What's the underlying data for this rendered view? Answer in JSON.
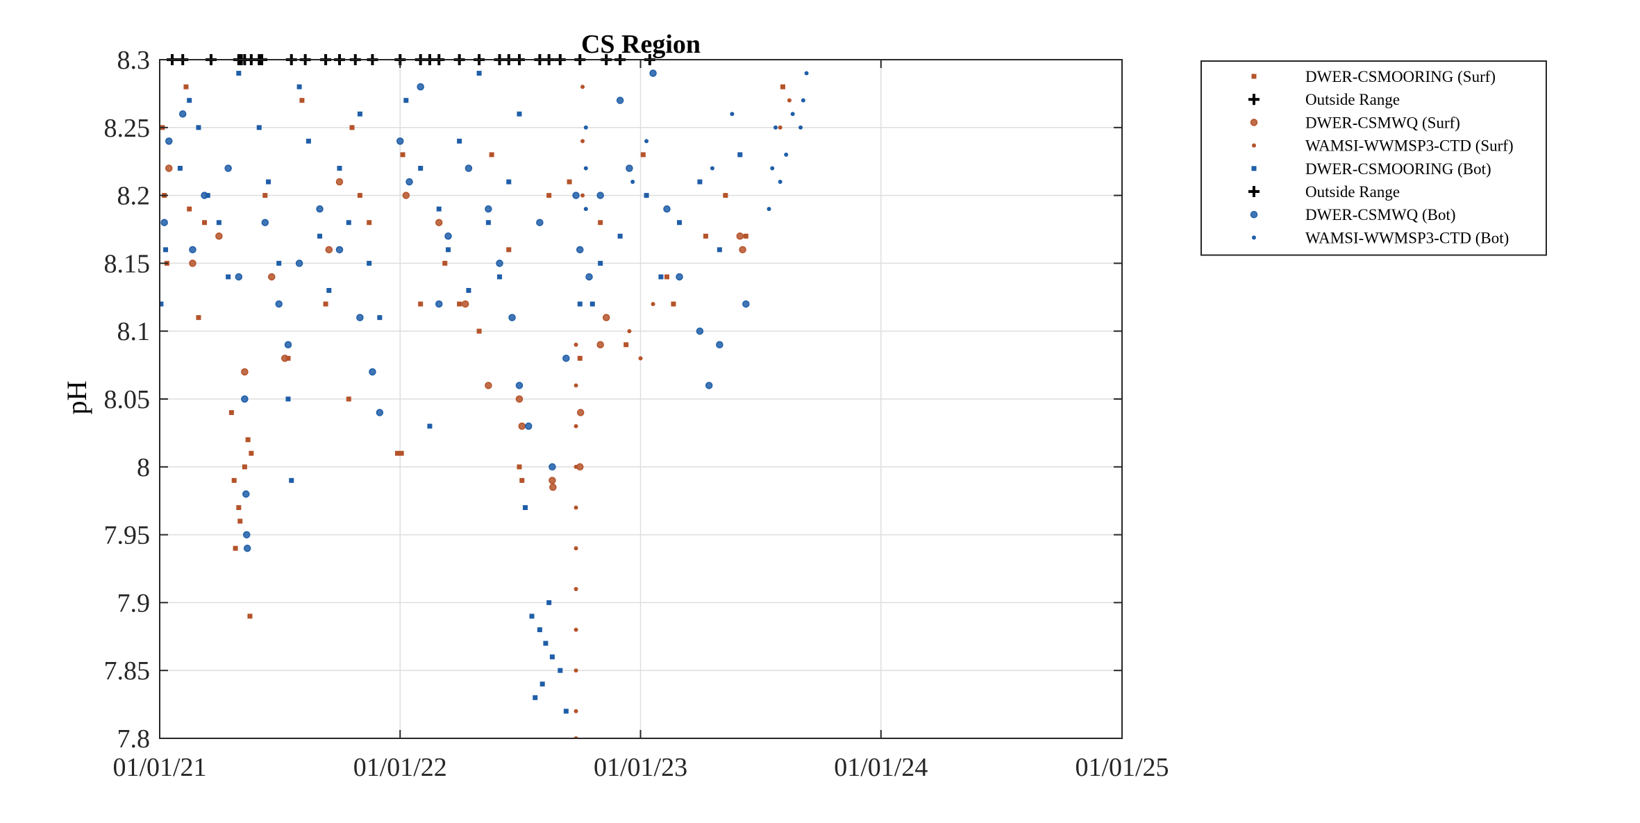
{
  "chart_data": {
    "type": "scatter",
    "title": "CS Region",
    "xlabel": "",
    "ylabel": "pH",
    "x_axis": {
      "type": "date",
      "range": [
        "2021-01-01",
        "2025-01-01"
      ],
      "ticks": [
        {
          "value": "2021-01-01",
          "label": "01/01/21"
        },
        {
          "value": "2022-01-01",
          "label": "01/01/22"
        },
        {
          "value": "2023-01-01",
          "label": "01/01/23"
        },
        {
          "value": "2024-01-01",
          "label": "01/01/24"
        },
        {
          "value": "2025-01-01",
          "label": "01/01/25"
        }
      ]
    },
    "y_axis": {
      "range": [
        7.8,
        8.3
      ],
      "ticks": [
        {
          "value": 7.8,
          "label": "7.8"
        },
        {
          "value": 7.85,
          "label": "7.85"
        },
        {
          "value": 7.9,
          "label": "7.9"
        },
        {
          "value": 7.95,
          "label": "7.95"
        },
        {
          "value": 8.0,
          "label": "8"
        },
        {
          "value": 8.05,
          "label": "8.05"
        },
        {
          "value": 8.1,
          "label": "8.1"
        },
        {
          "value": 8.15,
          "label": "8.15"
        },
        {
          "value": 8.2,
          "label": "8.2"
        },
        {
          "value": 8.25,
          "label": "8.25"
        },
        {
          "value": 8.3,
          "label": "8.3"
        }
      ]
    },
    "grid": true,
    "legend_position": "outside-top-right",
    "colors": {
      "surface": "#b5532a",
      "bottom": "#1f5ea8",
      "outside_range": "#000000"
    },
    "series": [
      {
        "name": "DWER-CSMOORING (Surf)",
        "marker": "square",
        "color": "#b5532a",
        "points": [
          [
            "2021-01-05",
            8.25
          ],
          [
            "2021-01-08",
            8.2
          ],
          [
            "2021-01-12",
            8.15
          ],
          [
            "2021-02-10",
            8.28
          ],
          [
            "2021-02-15",
            8.19
          ],
          [
            "2021-03-01",
            8.11
          ],
          [
            "2021-03-10",
            8.18
          ],
          [
            "2021-04-20",
            8.04
          ],
          [
            "2021-04-24",
            7.99
          ],
          [
            "2021-04-26",
            7.94
          ],
          [
            "2021-05-01",
            7.97
          ],
          [
            "2021-05-03",
            7.96
          ],
          [
            "2021-05-10",
            8.0
          ],
          [
            "2021-05-15",
            8.02
          ],
          [
            "2021-05-18",
            7.89
          ],
          [
            "2021-05-20",
            8.01
          ],
          [
            "2021-06-10",
            8.2
          ],
          [
            "2021-07-15",
            8.08
          ],
          [
            "2021-08-05",
            8.27
          ],
          [
            "2021-09-10",
            8.12
          ],
          [
            "2021-10-15",
            8.05
          ],
          [
            "2021-10-20",
            8.25
          ],
          [
            "2021-11-01",
            8.2
          ],
          [
            "2021-11-15",
            8.18
          ],
          [
            "2021-12-28",
            8.01
          ],
          [
            "2022-01-03",
            8.01
          ],
          [
            "2022-01-05",
            8.23
          ],
          [
            "2022-02-01",
            8.12
          ],
          [
            "2022-03-10",
            8.15
          ],
          [
            "2022-04-01",
            8.12
          ],
          [
            "2022-05-01",
            8.1
          ],
          [
            "2022-05-20",
            8.23
          ],
          [
            "2022-06-15",
            8.16
          ],
          [
            "2022-07-01",
            8.0
          ],
          [
            "2022-07-05",
            7.99
          ],
          [
            "2022-08-15",
            8.2
          ],
          [
            "2022-09-15",
            8.21
          ],
          [
            "2022-10-01",
            8.08
          ],
          [
            "2022-11-01",
            8.18
          ],
          [
            "2022-12-10",
            8.09
          ],
          [
            "2023-01-05",
            8.23
          ],
          [
            "2023-02-10",
            8.14
          ],
          [
            "2023-02-20",
            8.12
          ],
          [
            "2023-04-10",
            8.17
          ],
          [
            "2023-05-10",
            8.2
          ],
          [
            "2023-06-10",
            8.17
          ],
          [
            "2023-08-05",
            8.28
          ]
        ]
      },
      {
        "name": "Outside Range",
        "marker": "plus",
        "color": "#000000",
        "points": [
          [
            "2021-01-20",
            8.3
          ],
          [
            "2021-02-05",
            8.3
          ],
          [
            "2021-03-20",
            8.3
          ],
          [
            "2021-05-01",
            8.3
          ],
          [
            "2021-05-10",
            8.3
          ],
          [
            "2021-05-20",
            8.3
          ],
          [
            "2021-06-01",
            8.3
          ],
          [
            "2021-07-20",
            8.3
          ],
          [
            "2021-08-10",
            8.3
          ],
          [
            "2021-09-10",
            8.3
          ],
          [
            "2021-10-01",
            8.3
          ],
          [
            "2021-10-25",
            8.3
          ],
          [
            "2021-11-20",
            8.3
          ],
          [
            "2022-01-01",
            8.3
          ],
          [
            "2022-02-01",
            8.3
          ],
          [
            "2022-03-01",
            8.3
          ],
          [
            "2022-04-01",
            8.3
          ],
          [
            "2022-05-01",
            8.3
          ],
          [
            "2022-06-01",
            8.3
          ],
          [
            "2022-07-01",
            8.3
          ],
          [
            "2022-08-01",
            8.3
          ],
          [
            "2022-09-01",
            8.3
          ],
          [
            "2022-10-01",
            8.3
          ],
          [
            "2022-11-10",
            8.3
          ],
          [
            "2022-12-01",
            8.3
          ],
          [
            "2023-01-15",
            8.3
          ]
        ]
      },
      {
        "name": "DWER-CSMWQ (Surf)",
        "marker": "circle",
        "color": "#b5532a",
        "points": [
          [
            "2021-01-15",
            8.22
          ],
          [
            "2021-02-20",
            8.15
          ],
          [
            "2021-04-01",
            8.17
          ],
          [
            "2021-05-10",
            8.07
          ],
          [
            "2021-06-20",
            8.14
          ],
          [
            "2021-07-10",
            8.08
          ],
          [
            "2021-09-15",
            8.16
          ],
          [
            "2021-10-01",
            8.21
          ],
          [
            "2022-01-10",
            8.2
          ],
          [
            "2022-03-01",
            8.18
          ],
          [
            "2022-04-10",
            8.12
          ],
          [
            "2022-05-15",
            8.06
          ],
          [
            "2022-07-01",
            8.05
          ],
          [
            "2022-07-05",
            8.03
          ],
          [
            "2022-08-20",
            7.99
          ],
          [
            "2022-08-21",
            7.985
          ],
          [
            "2022-10-01",
            8.0
          ],
          [
            "2022-10-02",
            8.04
          ],
          [
            "2022-11-01",
            8.09
          ],
          [
            "2022-11-10",
            8.11
          ],
          [
            "2023-06-01",
            8.17
          ],
          [
            "2023-06-05",
            8.16
          ]
        ]
      },
      {
        "name": "WAMSI-WWMSP3-CTD (Surf)",
        "marker": "dot",
        "color": "#b5532a",
        "points": [
          [
            "2022-09-25",
            7.8
          ],
          [
            "2022-09-25",
            7.82
          ],
          [
            "2022-09-25",
            7.85
          ],
          [
            "2022-09-25",
            7.88
          ],
          [
            "2022-09-25",
            7.91
          ],
          [
            "2022-09-25",
            7.94
          ],
          [
            "2022-09-25",
            7.97
          ],
          [
            "2022-09-25",
            8.0
          ],
          [
            "2022-09-25",
            8.03
          ],
          [
            "2022-09-25",
            8.06
          ],
          [
            "2022-09-25",
            8.09
          ],
          [
            "2022-10-05",
            8.2
          ],
          [
            "2022-10-05",
            8.24
          ],
          [
            "2022-10-05",
            8.28
          ],
          [
            "2022-12-15",
            8.1
          ],
          [
            "2023-01-01",
            8.08
          ],
          [
            "2023-01-20",
            8.12
          ],
          [
            "2023-08-01",
            8.25
          ],
          [
            "2023-08-15",
            8.27
          ]
        ]
      },
      {
        "name": "DWER-CSMOORING (Bot)",
        "marker": "square",
        "color": "#1f5ea8",
        "points": [
          [
            "2021-01-03",
            8.12
          ],
          [
            "2021-01-10",
            8.16
          ],
          [
            "2021-02-01",
            8.22
          ],
          [
            "2021-02-15",
            8.27
          ],
          [
            "2021-03-01",
            8.25
          ],
          [
            "2021-03-15",
            8.2
          ],
          [
            "2021-04-01",
            8.18
          ],
          [
            "2021-04-15",
            8.14
          ],
          [
            "2021-05-01",
            8.29
          ],
          [
            "2021-06-01",
            8.25
          ],
          [
            "2021-06-15",
            8.21
          ],
          [
            "2021-07-01",
            8.15
          ],
          [
            "2021-07-15",
            8.05
          ],
          [
            "2021-07-20",
            7.99
          ],
          [
            "2021-08-01",
            8.28
          ],
          [
            "2021-08-15",
            8.24
          ],
          [
            "2021-09-01",
            8.17
          ],
          [
            "2021-09-15",
            8.13
          ],
          [
            "2021-10-01",
            8.22
          ],
          [
            "2021-10-15",
            8.18
          ],
          [
            "2021-11-01",
            8.26
          ],
          [
            "2021-11-15",
            8.15
          ],
          [
            "2021-12-01",
            8.11
          ],
          [
            "2022-01-10",
            8.27
          ],
          [
            "2022-02-01",
            8.22
          ],
          [
            "2022-02-15",
            8.03
          ],
          [
            "2022-03-01",
            8.19
          ],
          [
            "2022-03-15",
            8.16
          ],
          [
            "2022-04-01",
            8.24
          ],
          [
            "2022-04-15",
            8.13
          ],
          [
            "2022-05-01",
            8.29
          ],
          [
            "2022-05-15",
            8.18
          ],
          [
            "2022-06-01",
            8.14
          ],
          [
            "2022-06-15",
            8.21
          ],
          [
            "2022-07-01",
            8.26
          ],
          [
            "2022-07-10",
            7.97
          ],
          [
            "2022-07-20",
            7.89
          ],
          [
            "2022-08-01",
            7.88
          ],
          [
            "2022-08-10",
            7.87
          ],
          [
            "2022-08-20",
            7.86
          ],
          [
            "2022-09-01",
            7.85
          ],
          [
            "2022-08-05",
            7.84
          ],
          [
            "2022-07-25",
            7.83
          ],
          [
            "2022-09-10",
            7.82
          ],
          [
            "2022-08-15",
            7.9
          ],
          [
            "2022-10-01",
            8.12
          ],
          [
            "2022-10-20",
            8.12
          ],
          [
            "2022-11-01",
            8.15
          ],
          [
            "2022-12-01",
            8.17
          ],
          [
            "2023-01-10",
            8.2
          ],
          [
            "2023-02-01",
            8.14
          ],
          [
            "2023-03-01",
            8.18
          ],
          [
            "2023-04-01",
            8.21
          ],
          [
            "2023-05-01",
            8.16
          ],
          [
            "2023-06-01",
            8.23
          ]
        ]
      },
      {
        "name": "Outside Range",
        "marker": "plus",
        "color": "#000000",
        "points": [
          [
            "2021-05-05",
            8.3
          ],
          [
            "2021-06-05",
            8.3
          ],
          [
            "2022-02-15",
            8.3
          ],
          [
            "2022-06-15",
            8.3
          ],
          [
            "2022-08-15",
            8.3
          ]
        ]
      },
      {
        "name": "DWER-CSMWQ (Bot)",
        "marker": "circle",
        "color": "#1f5ea8",
        "points": [
          [
            "2021-01-08",
            8.18
          ],
          [
            "2021-01-15",
            8.24
          ],
          [
            "2021-02-05",
            8.26
          ],
          [
            "2021-02-20",
            8.16
          ],
          [
            "2021-03-10",
            8.2
          ],
          [
            "2021-04-15",
            8.22
          ],
          [
            "2021-05-01",
            8.14
          ],
          [
            "2021-05-10",
            8.05
          ],
          [
            "2021-05-12",
            7.98
          ],
          [
            "2021-05-13",
            7.95
          ],
          [
            "2021-05-14",
            7.94
          ],
          [
            "2021-06-10",
            8.18
          ],
          [
            "2021-07-01",
            8.12
          ],
          [
            "2021-07-15",
            8.09
          ],
          [
            "2021-08-01",
            8.15
          ],
          [
            "2021-09-01",
            8.19
          ],
          [
            "2021-10-01",
            8.16
          ],
          [
            "2021-11-01",
            8.11
          ],
          [
            "2021-11-20",
            8.07
          ],
          [
            "2021-12-01",
            8.04
          ],
          [
            "2022-01-01",
            8.24
          ],
          [
            "2022-01-15",
            8.21
          ],
          [
            "2022-02-01",
            8.28
          ],
          [
            "2022-03-01",
            8.12
          ],
          [
            "2022-03-15",
            8.17
          ],
          [
            "2022-04-15",
            8.22
          ],
          [
            "2022-05-15",
            8.19
          ],
          [
            "2022-06-01",
            8.15
          ],
          [
            "2022-06-20",
            8.11
          ],
          [
            "2022-07-01",
            8.06
          ],
          [
            "2022-07-15",
            8.03
          ],
          [
            "2022-08-01",
            8.18
          ],
          [
            "2022-08-20",
            8.0
          ],
          [
            "2022-09-10",
            8.08
          ],
          [
            "2022-09-25",
            8.2
          ],
          [
            "2022-10-01",
            8.16
          ],
          [
            "2022-10-15",
            8.14
          ],
          [
            "2022-11-01",
            8.2
          ],
          [
            "2022-12-01",
            8.27
          ],
          [
            "2022-12-15",
            8.22
          ],
          [
            "2023-01-20",
            8.29
          ],
          [
            "2023-02-10",
            8.19
          ],
          [
            "2023-03-01",
            8.14
          ],
          [
            "2023-04-01",
            8.1
          ],
          [
            "2023-04-15",
            8.06
          ],
          [
            "2023-05-01",
            8.09
          ],
          [
            "2023-06-10",
            8.12
          ]
        ]
      },
      {
        "name": "WAMSI-WWMSP3-CTD (Bot)",
        "marker": "dot",
        "color": "#1f5ea8",
        "points": [
          [
            "2022-10-10",
            8.25
          ],
          [
            "2022-10-10",
            8.22
          ],
          [
            "2022-10-10",
            8.19
          ],
          [
            "2022-12-20",
            8.21
          ],
          [
            "2023-01-10",
            8.24
          ],
          [
            "2023-04-20",
            8.22
          ],
          [
            "2023-05-20",
            8.26
          ],
          [
            "2023-07-15",
            8.19
          ],
          [
            "2023-07-20",
            8.22
          ],
          [
            "2023-07-25",
            8.25
          ],
          [
            "2023-08-01",
            8.21
          ],
          [
            "2023-08-10",
            8.23
          ],
          [
            "2023-08-20",
            8.26
          ],
          [
            "2023-09-01",
            8.25
          ],
          [
            "2023-09-05",
            8.27
          ],
          [
            "2023-09-10",
            8.29
          ]
        ]
      }
    ]
  }
}
